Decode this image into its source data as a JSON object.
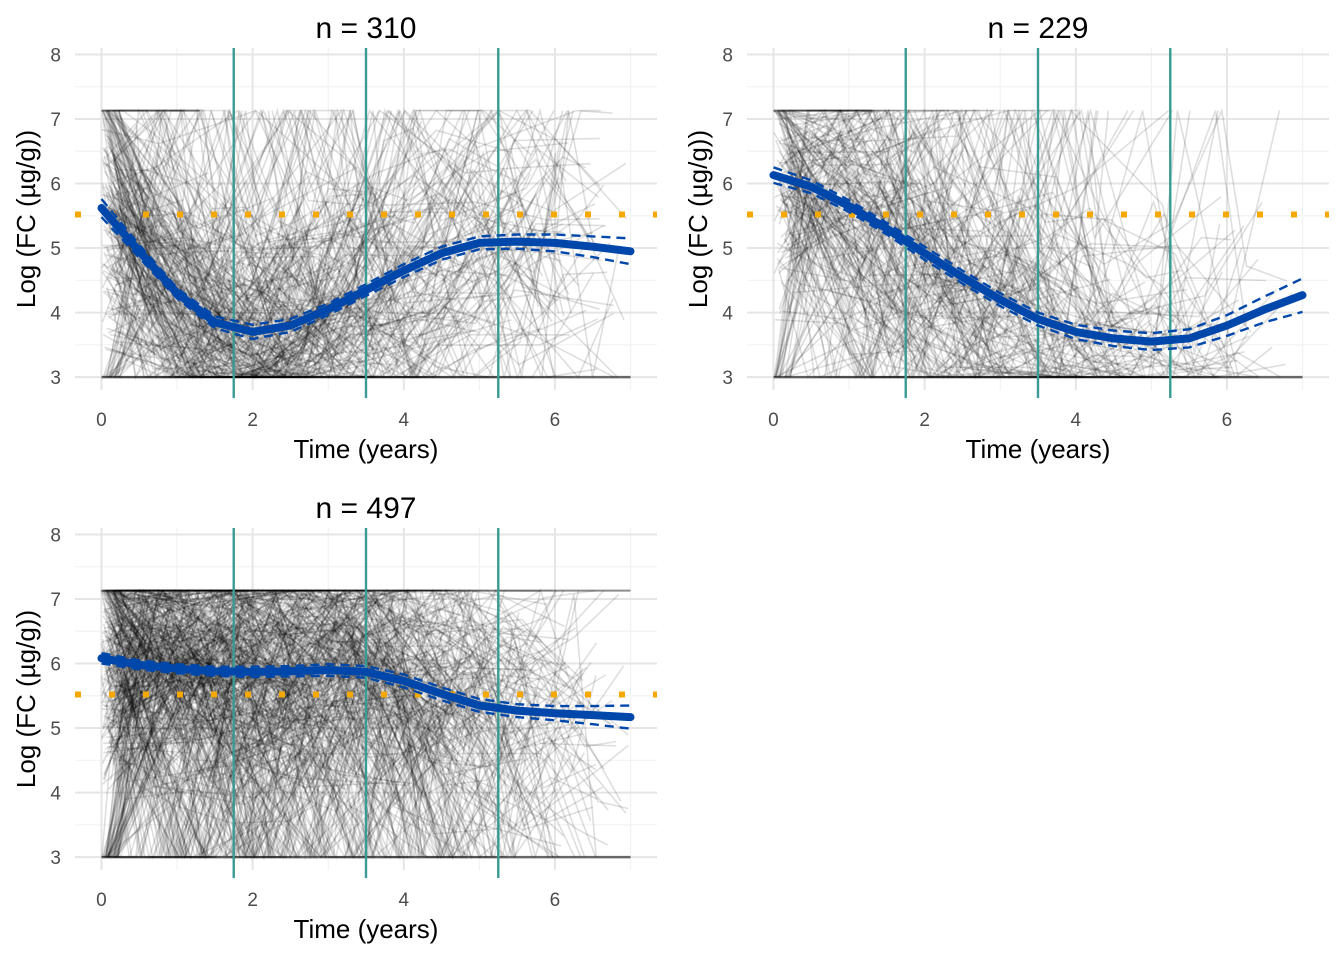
{
  "chart_data": [
    {
      "type": "line",
      "title": "n = 310",
      "xlabel": "Time (years)",
      "ylabel": "Log (FC (µg/g))",
      "xlim": [
        -0.35,
        7.35
      ],
      "ylim": [
        2.8,
        8.1
      ],
      "x_ticks": [
        0,
        2,
        4,
        6
      ],
      "y_ticks": [
        3,
        4,
        5,
        6,
        7,
        8
      ],
      "grid": true,
      "reference_line_y": 5.52,
      "vertical_lines_x": [
        1.75,
        3.5,
        5.25
      ],
      "n_trajectories": 310,
      "trend": {
        "x": [
          0,
          0.5,
          1,
          1.5,
          2,
          2.5,
          3,
          3.5,
          4,
          4.5,
          5,
          5.5,
          6,
          6.5,
          7
        ],
        "y": [
          5.62,
          4.95,
          4.3,
          3.85,
          3.7,
          3.8,
          4.05,
          4.35,
          4.65,
          4.92,
          5.08,
          5.1,
          5.08,
          5.02,
          4.95
        ]
      },
      "ci_halfwidth": [
        0.14,
        0.1,
        0.08,
        0.09,
        0.11,
        0.1,
        0.09,
        0.09,
        0.1,
        0.1,
        0.1,
        0.11,
        0.13,
        0.16,
        0.2
      ]
    },
    {
      "type": "line",
      "title": "n = 229",
      "xlabel": "Time (years)",
      "ylabel": "Log (FC (µg/g))",
      "xlim": [
        -0.35,
        7.35
      ],
      "ylim": [
        2.8,
        8.1
      ],
      "x_ticks": [
        0,
        2,
        4,
        6
      ],
      "y_ticks": [
        3,
        4,
        5,
        6,
        7,
        8
      ],
      "grid": true,
      "reference_line_y": 5.52,
      "vertical_lines_x": [
        1.75,
        3.5,
        5.25
      ],
      "n_trajectories": 229,
      "trend": {
        "x": [
          0,
          0.5,
          1,
          1.5,
          2,
          2.5,
          3,
          3.5,
          4,
          4.5,
          5,
          5.5,
          6,
          6.5,
          7
        ],
        "y": [
          6.13,
          5.95,
          5.65,
          5.3,
          4.92,
          4.55,
          4.2,
          3.9,
          3.7,
          3.6,
          3.55,
          3.6,
          3.8,
          4.05,
          4.27
        ]
      },
      "ci_halfwidth": [
        0.12,
        0.1,
        0.09,
        0.09,
        0.1,
        0.1,
        0.1,
        0.1,
        0.11,
        0.12,
        0.13,
        0.14,
        0.16,
        0.2,
        0.26
      ]
    },
    {
      "type": "line",
      "title": "n = 497",
      "xlabel": "Time (years)",
      "ylabel": "Log (FC (µg/g))",
      "xlim": [
        -0.35,
        7.35
      ],
      "ylim": [
        2.8,
        8.1
      ],
      "x_ticks": [
        0,
        2,
        4,
        6
      ],
      "y_ticks": [
        3,
        4,
        5,
        6,
        7,
        8
      ],
      "grid": true,
      "reference_line_y": 5.52,
      "vertical_lines_x": [
        1.75,
        3.5,
        5.25
      ],
      "n_trajectories": 497,
      "trend": {
        "x": [
          0,
          0.5,
          1,
          1.5,
          2,
          2.5,
          3,
          3.5,
          4,
          4.5,
          5,
          5.5,
          6,
          6.5,
          7
        ],
        "y": [
          6.08,
          5.98,
          5.92,
          5.88,
          5.87,
          5.88,
          5.9,
          5.87,
          5.73,
          5.53,
          5.35,
          5.27,
          5.23,
          5.2,
          5.17
        ]
      },
      "ci_halfwidth": [
        0.08,
        0.07,
        0.07,
        0.07,
        0.08,
        0.08,
        0.09,
        0.09,
        0.1,
        0.1,
        0.1,
        0.1,
        0.11,
        0.14,
        0.18
      ]
    }
  ],
  "colors": {
    "trajectory": "#000000",
    "trend": "#0047AB",
    "ci": "#0047AB",
    "reference_line": "#F5A800",
    "vertical_lines": "#3A9B94",
    "grid_major": "#E5E5E5",
    "grid_minor": "#F2F2F2"
  }
}
